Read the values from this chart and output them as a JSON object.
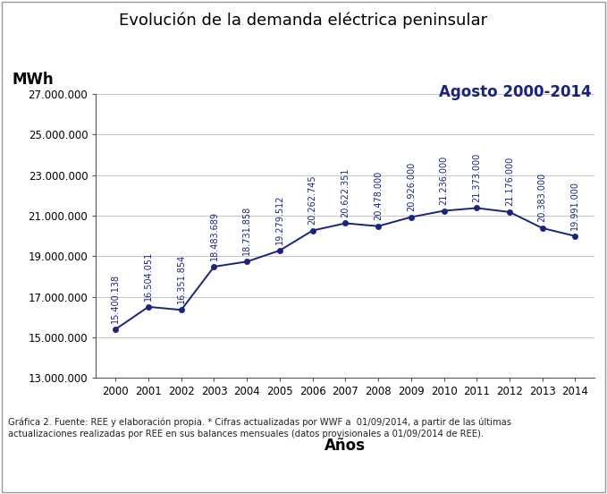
{
  "title": "Evolución de la demanda eléctrica peninsular",
  "subtitle": "Agosto 2000-2014",
  "ylabel": "MWh",
  "xlabel": "Años",
  "footer": "Gráfica 2. Fuente: REE y elaboración propia. * Cifras actualizadas por WWF a  01/09/2014, a partir de las últimas\nactualizaciones realizadas por REE en sus balances mensuales (datos provisionales a 01/09/2014 de REE).",
  "years": [
    2000,
    2001,
    2002,
    2003,
    2004,
    2005,
    2006,
    2007,
    2008,
    2009,
    2010,
    2011,
    2012,
    2013,
    2014
  ],
  "values": [
    15400138,
    16504051,
    16351854,
    18483689,
    18731858,
    19279512,
    20262745,
    20622351,
    20478000,
    20926000,
    21236000,
    21373000,
    21176000,
    20383000,
    19991000
  ],
  "labels": [
    "15.400.138",
    "16.504.051",
    "16.351.854",
    "18.483.689",
    "18.731.858",
    "19.279.512",
    "20.262.745",
    "20.622.351",
    "20.478.000",
    "20.926.000",
    "21.236.000",
    "21.373.000",
    "21.176.000",
    "20.383.000",
    "19.991.000"
  ],
  "line_color": "#1a237e",
  "marker_color": "#1a237e",
  "ylim_min": 13000000,
  "ylim_max": 27000000,
  "yticks": [
    13000000,
    15000000,
    17000000,
    19000000,
    21000000,
    23000000,
    25000000,
    27000000
  ],
  "ytick_labels": [
    "13.000.000",
    "15.000.000",
    "17.000.000",
    "19.000.000",
    "21.000.000",
    "23.000.000",
    "25.000.000",
    "27.000.000"
  ],
  "bg_color": "#ffffff",
  "plot_bg_color": "#ffffff",
  "grid_color": "#bbbbbb",
  "title_fontsize": 13,
  "subtitle_fontsize": 12,
  "label_fontsize": 7,
  "ylabel_fontsize": 12,
  "xlabel_fontsize": 12,
  "tick_fontsize": 8.5,
  "footer_fontsize": 7.2
}
